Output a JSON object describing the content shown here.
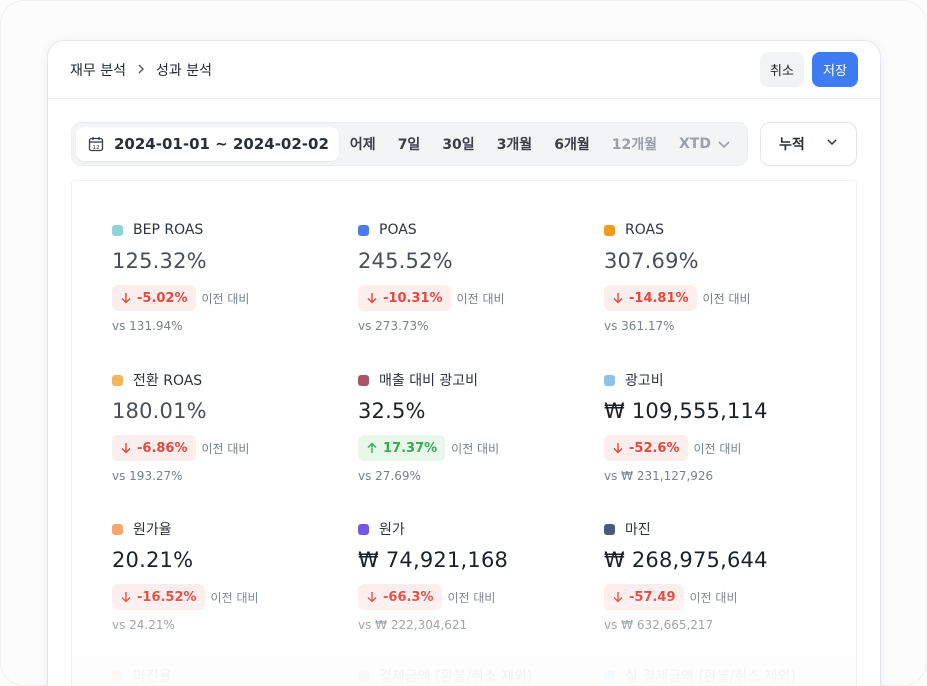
{
  "breadcrumb": {
    "parent": "재무 분석",
    "current": "성과 분석"
  },
  "actions": {
    "cancel": "취소",
    "save": "저장"
  },
  "toolbar": {
    "date_range": "2024-01-01 ~ 2024-02-02",
    "options": [
      {
        "label": "어제",
        "enabled": true
      },
      {
        "label": "7일",
        "enabled": true
      },
      {
        "label": "30일",
        "enabled": true
      },
      {
        "label": "3개월",
        "enabled": true
      },
      {
        "label": "6개월",
        "enabled": true
      },
      {
        "label": "12개월",
        "enabled": false
      },
      {
        "label": "XTD",
        "enabled": false
      }
    ],
    "mode": "누적"
  },
  "compare_label": "이전 대비",
  "metrics": [
    {
      "label": "BEP ROAS",
      "color": "#8fd3dc",
      "value": "125.32%",
      "change": "-5.02%",
      "dir": "down",
      "prev": "vs 131.94%"
    },
    {
      "label": "POAS",
      "color": "#4a7cf0",
      "value": "245.52%",
      "change": "-10.31%",
      "dir": "down",
      "prev": "vs 273.73%"
    },
    {
      "label": "ROAS",
      "color": "#f29a1a",
      "value": "307.69%",
      "change": "-14.81%",
      "dir": "down",
      "prev": "vs 361.17%"
    },
    {
      "label": "전환 ROAS",
      "color": "#f1b55c",
      "value": "180.01%",
      "change": "-6.86%",
      "dir": "down",
      "prev": "vs 193.27%"
    },
    {
      "label": "매출 대비 광고비",
      "color": "#a85466",
      "value": "32.5%",
      "change": "17.37%",
      "dir": "up",
      "prev": "vs 27.69%"
    },
    {
      "label": "광고비",
      "color": "#8ec3e8",
      "value": "₩ 109,555,114",
      "change": "-52.6%",
      "dir": "down",
      "prev": "vs ₩ 231,127,926"
    },
    {
      "label": "원가율",
      "color": "#f4a86a",
      "value": "20.21%",
      "change": "-16.52%",
      "dir": "down",
      "prev": "vs 24.21%"
    },
    {
      "label": "원가",
      "color": "#7356e6",
      "value": "₩ 74,921,168",
      "change": "-66.3%",
      "dir": "down",
      "prev": "vs ₩ 222,304,621"
    },
    {
      "label": "마진",
      "color": "#4b5880",
      "value": "₩ 268,975,644",
      "change": "-57.49",
      "dir": "down",
      "prev": "vs ₩ 632,665,217"
    }
  ],
  "faded_metrics": [
    {
      "label": "마진율",
      "color": "#f4a86a"
    },
    {
      "label": "결제금액 (환불/취소 제외)",
      "color": "#9aa0a8"
    },
    {
      "label": "실 결제금액 (환불/취소 제외)",
      "color": "#8ec3e8"
    }
  ]
}
